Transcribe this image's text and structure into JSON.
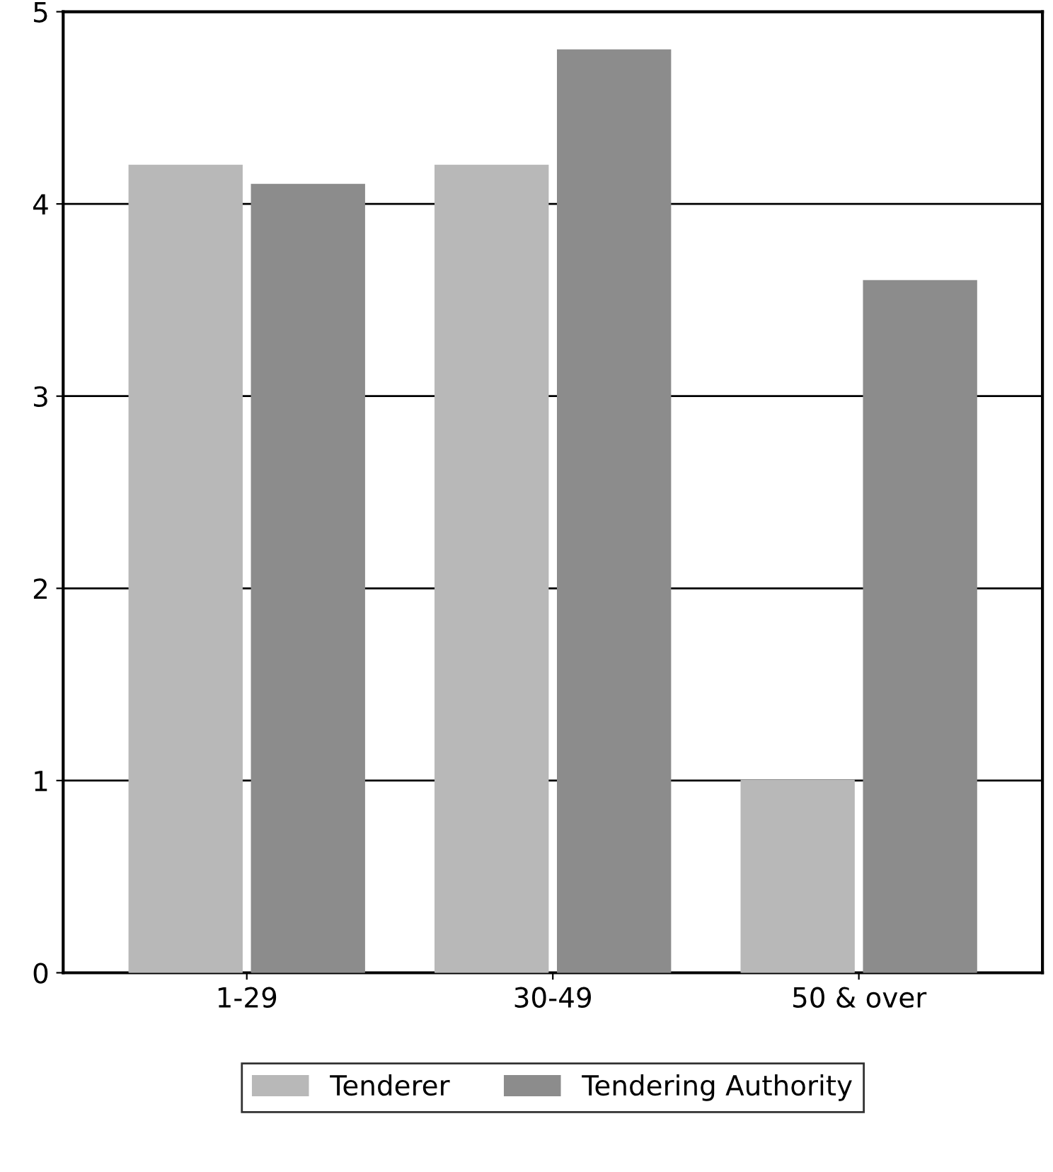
{
  "chart_data": {
    "type": "bar",
    "categories": [
      "1-29",
      "30-49",
      "50 & over"
    ],
    "series": [
      {
        "name": "Tenderer",
        "color": "#b8b8b8",
        "values": [
          4.2,
          4.2,
          1.0
        ]
      },
      {
        "name": "Tendering Authority",
        "color": "#8c8c8c",
        "values": [
          4.1,
          4.8,
          3.6
        ]
      }
    ],
    "ylim": [
      0,
      5
    ],
    "yticks": [
      0,
      1,
      2,
      3,
      4,
      5
    ],
    "grid": "y",
    "legend": "bottom"
  }
}
